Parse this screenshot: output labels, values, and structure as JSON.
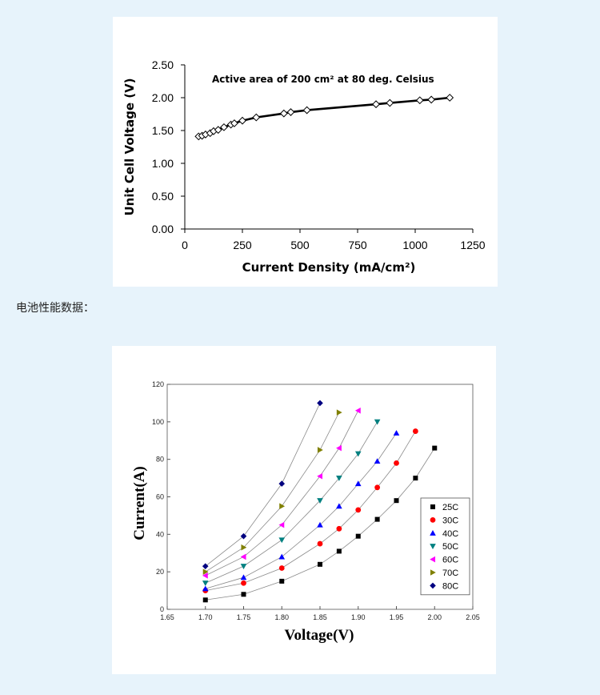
{
  "caption": "电池性能数据：",
  "chart_data": [
    {
      "type": "scatter",
      "annotation": "Active area of 200 cm² at 80 deg. Celsius",
      "xlabel": "Current Density (mA/cm²)",
      "ylabel": "Unit Cell Voltage (V)",
      "xlim": [
        0,
        1250
      ],
      "ylim": [
        0,
        2.5
      ],
      "xticks": [
        "0",
        "250",
        "500",
        "750",
        "1000",
        "1250"
      ],
      "yticks": [
        "0.00",
        "0.50",
        "1.00",
        "1.50",
        "2.00",
        "2.50"
      ],
      "series": [
        {
          "marker": "diamond-open",
          "color": "#000000",
          "x": [
            60,
            75,
            90,
            110,
            125,
            145,
            170,
            200,
            215,
            250,
            310,
            430,
            460,
            530,
            830,
            890,
            1020,
            1070,
            1150
          ],
          "y": [
            1.41,
            1.42,
            1.44,
            1.46,
            1.49,
            1.51,
            1.55,
            1.59,
            1.61,
            1.65,
            1.7,
            1.76,
            1.78,
            1.81,
            1.9,
            1.92,
            1.96,
            1.97,
            2.0
          ]
        }
      ],
      "grid": false
    },
    {
      "type": "line",
      "xlabel": "Voltage(V)",
      "ylabel": "Current(A)",
      "xlim": [
        1.65,
        2.05
      ],
      "ylim": [
        0,
        120
      ],
      "xticks": [
        "1.65",
        "1.70",
        "1.75",
        "1.80",
        "1.85",
        "1.90",
        "1.95",
        "2.00",
        "2.05"
      ],
      "yticks": [
        "0",
        "20",
        "40",
        "60",
        "80",
        "100",
        "120"
      ],
      "legend_position": "right",
      "series": [
        {
          "name": "25C",
          "color": "#000000",
          "marker": "square",
          "x": [
            1.7,
            1.75,
            1.8,
            1.85,
            1.875,
            1.9,
            1.925,
            1.95,
            1.975,
            2.0
          ],
          "y": [
            5,
            8,
            15,
            24,
            31,
            39,
            48,
            58,
            70,
            86
          ]
        },
        {
          "name": "30C",
          "color": "#ff0000",
          "marker": "circle",
          "x": [
            1.7,
            1.75,
            1.8,
            1.85,
            1.875,
            1.9,
            1.925,
            1.95,
            1.975
          ],
          "y": [
            10,
            14,
            22,
            35,
            43,
            53,
            65,
            78,
            95
          ]
        },
        {
          "name": "40C",
          "color": "#0000ff",
          "marker": "triangle-up",
          "x": [
            1.7,
            1.75,
            1.8,
            1.85,
            1.875,
            1.9,
            1.925,
            1.95
          ],
          "y": [
            11,
            17,
            28,
            45,
            55,
            67,
            79,
            94
          ]
        },
        {
          "name": "50C",
          "color": "#008080",
          "marker": "triangle-down",
          "x": [
            1.7,
            1.75,
            1.8,
            1.85,
            1.875,
            1.9,
            1.925
          ],
          "y": [
            14,
            23,
            37,
            58,
            70,
            83,
            100
          ]
        },
        {
          "name": "60C",
          "color": "#ff00ff",
          "marker": "triangle-left",
          "x": [
            1.7,
            1.75,
            1.8,
            1.85,
            1.875,
            1.9
          ],
          "y": [
            18,
            28,
            45,
            71,
            86,
            106
          ]
        },
        {
          "name": "70C",
          "color": "#808000",
          "marker": "triangle-right",
          "x": [
            1.7,
            1.75,
            1.8,
            1.85,
            1.875
          ],
          "y": [
            20,
            33,
            55,
            85,
            105
          ]
        },
        {
          "name": "80C",
          "color": "#000080",
          "marker": "diamond",
          "x": [
            1.7,
            1.75,
            1.8,
            1.85
          ],
          "y": [
            23,
            39,
            67,
            110
          ]
        }
      ],
      "grid": false
    }
  ]
}
